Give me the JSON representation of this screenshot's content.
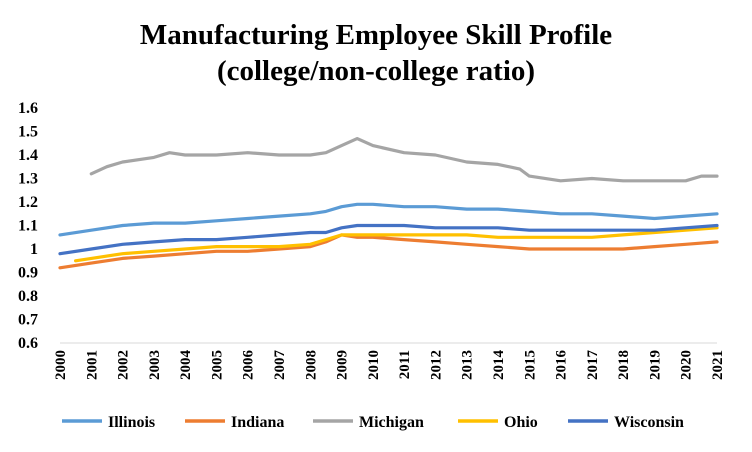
{
  "chart_data": {
    "type": "line",
    "title_lines": [
      "Manufacturing Employee Skill Profile",
      "(college/non-college ratio)"
    ],
    "xlabel": "",
    "ylabel": "",
    "ylim": [
      0.6,
      1.6
    ],
    "yticks": [
      "0.6",
      "0.7",
      "0.8",
      "0.9",
      "1",
      "1.1",
      "1.2",
      "1.3",
      "1.4",
      "1.5",
      "1.6"
    ],
    "xlim": [
      2000,
      2021
    ],
    "xticks": [
      "2000",
      "2001",
      "2002",
      "2003",
      "2004",
      "2005",
      "2006",
      "2007",
      "2008",
      "2009",
      "2010",
      "2011",
      "2012",
      "2013",
      "2014",
      "2015",
      "2016",
      "2017",
      "2018",
      "2019",
      "2020",
      "2021"
    ],
    "grid": false,
    "legend_position": "bottom",
    "series": [
      {
        "name": "Illinois",
        "color": "#5B9BD5",
        "points": [
          [
            2000,
            1.06
          ],
          [
            2001,
            1.08
          ],
          [
            2002,
            1.1
          ],
          [
            2003,
            1.11
          ],
          [
            2004,
            1.11
          ],
          [
            2005,
            1.12
          ],
          [
            2006,
            1.13
          ],
          [
            2007,
            1.14
          ],
          [
            2008,
            1.15
          ],
          [
            2008.5,
            1.16
          ],
          [
            2009,
            1.18
          ],
          [
            2009.5,
            1.19
          ],
          [
            2010,
            1.19
          ],
          [
            2011,
            1.18
          ],
          [
            2012,
            1.18
          ],
          [
            2013,
            1.17
          ],
          [
            2014,
            1.17
          ],
          [
            2015,
            1.16
          ],
          [
            2016,
            1.15
          ],
          [
            2017,
            1.15
          ],
          [
            2018,
            1.14
          ],
          [
            2019,
            1.13
          ],
          [
            2020,
            1.14
          ],
          [
            2021,
            1.15
          ]
        ]
      },
      {
        "name": "Indiana",
        "color": "#ED7D31",
        "points": [
          [
            2000,
            0.92
          ],
          [
            2001,
            0.94
          ],
          [
            2002,
            0.96
          ],
          [
            2003,
            0.97
          ],
          [
            2004,
            0.98
          ],
          [
            2005,
            0.99
          ],
          [
            2006,
            0.99
          ],
          [
            2007,
            1.0
          ],
          [
            2008,
            1.01
          ],
          [
            2008.5,
            1.03
          ],
          [
            2009,
            1.06
          ],
          [
            2009.5,
            1.05
          ],
          [
            2010,
            1.05
          ],
          [
            2011,
            1.04
          ],
          [
            2012,
            1.03
          ],
          [
            2013,
            1.02
          ],
          [
            2014,
            1.01
          ],
          [
            2015,
            1.0
          ],
          [
            2016,
            1.0
          ],
          [
            2017,
            1.0
          ],
          [
            2018,
            1.0
          ],
          [
            2019,
            1.01
          ],
          [
            2020,
            1.02
          ],
          [
            2021,
            1.03
          ]
        ]
      },
      {
        "name": "Michigan",
        "color": "#A5A5A5",
        "points": [
          [
            2001,
            1.32
          ],
          [
            2001.5,
            1.35
          ],
          [
            2002,
            1.37
          ],
          [
            2003,
            1.39
          ],
          [
            2003.5,
            1.41
          ],
          [
            2004,
            1.4
          ],
          [
            2005,
            1.4
          ],
          [
            2006,
            1.41
          ],
          [
            2007,
            1.4
          ],
          [
            2008,
            1.4
          ],
          [
            2008.5,
            1.41
          ],
          [
            2009,
            1.44
          ],
          [
            2009.5,
            1.47
          ],
          [
            2010,
            1.44
          ],
          [
            2011,
            1.41
          ],
          [
            2012,
            1.4
          ],
          [
            2013,
            1.37
          ],
          [
            2014,
            1.36
          ],
          [
            2014.7,
            1.34
          ],
          [
            2015,
            1.31
          ],
          [
            2016,
            1.29
          ],
          [
            2017,
            1.3
          ],
          [
            2018,
            1.29
          ],
          [
            2019,
            1.29
          ],
          [
            2020,
            1.29
          ],
          [
            2020.5,
            1.31
          ],
          [
            2021,
            1.31
          ]
        ]
      },
      {
        "name": "Ohio",
        "color": "#FFC000",
        "points": [
          [
            2000.5,
            0.95
          ],
          [
            2001,
            0.96
          ],
          [
            2002,
            0.98
          ],
          [
            2003,
            0.99
          ],
          [
            2004,
            1.0
          ],
          [
            2005,
            1.01
          ],
          [
            2006,
            1.01
          ],
          [
            2007,
            1.01
          ],
          [
            2008,
            1.02
          ],
          [
            2008.5,
            1.04
          ],
          [
            2009,
            1.06
          ],
          [
            2010,
            1.06
          ],
          [
            2011,
            1.06
          ],
          [
            2012,
            1.06
          ],
          [
            2013,
            1.06
          ],
          [
            2014,
            1.05
          ],
          [
            2015,
            1.05
          ],
          [
            2016,
            1.05
          ],
          [
            2017,
            1.05
          ],
          [
            2018,
            1.06
          ],
          [
            2019,
            1.07
          ],
          [
            2020,
            1.08
          ],
          [
            2021,
            1.09
          ]
        ]
      },
      {
        "name": "Wisconsin",
        "color": "#4472C4",
        "points": [
          [
            2000,
            0.98
          ],
          [
            2001,
            1.0
          ],
          [
            2002,
            1.02
          ],
          [
            2003,
            1.03
          ],
          [
            2004,
            1.04
          ],
          [
            2005,
            1.04
          ],
          [
            2006,
            1.05
          ],
          [
            2007,
            1.06
          ],
          [
            2008,
            1.07
          ],
          [
            2008.5,
            1.07
          ],
          [
            2009,
            1.09
          ],
          [
            2009.5,
            1.1
          ],
          [
            2010,
            1.1
          ],
          [
            2011,
            1.1
          ],
          [
            2012,
            1.09
          ],
          [
            2013,
            1.09
          ],
          [
            2014,
            1.09
          ],
          [
            2015,
            1.08
          ],
          [
            2016,
            1.08
          ],
          [
            2017,
            1.08
          ],
          [
            2018,
            1.08
          ],
          [
            2019,
            1.08
          ],
          [
            2020,
            1.09
          ],
          [
            2021,
            1.1
          ]
        ]
      }
    ]
  }
}
